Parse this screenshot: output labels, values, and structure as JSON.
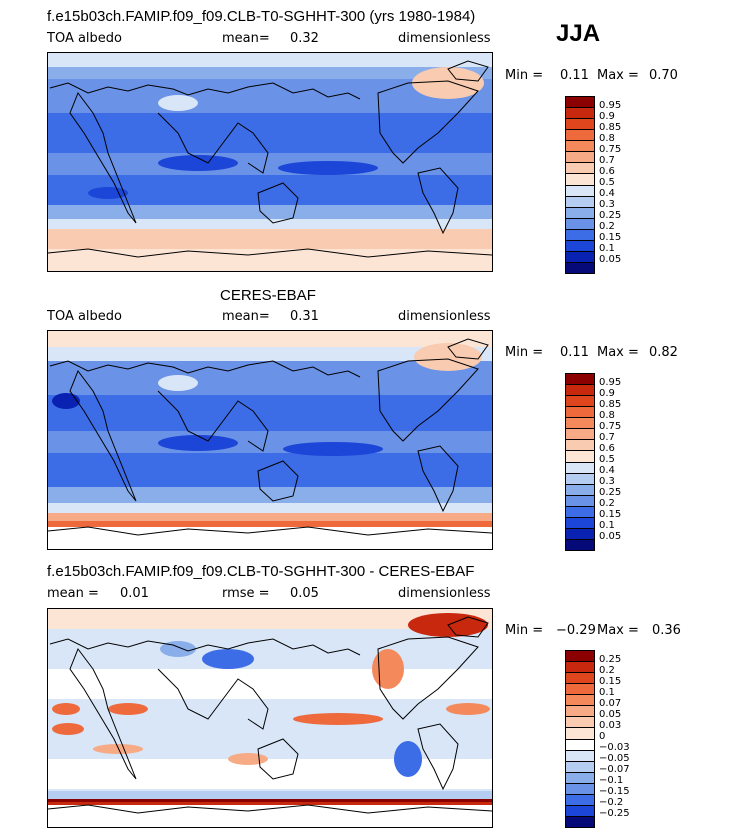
{
  "season": "JJA",
  "panels": [
    {
      "title": "f.e15b03ch.FAMIP.f09_f09.CLB-T0-SGHHT-300 (yrs 1980-1984)",
      "left": "TOA albedo",
      "mid_label": "mean=",
      "mid_value": "0.32",
      "right": "dimensionless",
      "min_label": "Min =",
      "min_value": "0.11",
      "max_label": "Max =",
      "max_value": "0.70"
    },
    {
      "title": "CERES-EBAF",
      "left": "TOA albedo",
      "mid_label": "mean=",
      "mid_value": "0.31",
      "right": "dimensionless",
      "min_label": "Min =",
      "min_value": "0.11",
      "max_label": "Max =",
      "max_value": "0.82"
    },
    {
      "title": "f.e15b03ch.FAMIP.f09_f09.CLB-T0-SGHHT-300 - CERES-EBAF",
      "left_label": "mean =",
      "left_value": "0.01",
      "mid_label": "rmse =",
      "mid_value": "0.05",
      "right": "dimensionless",
      "min_label": "Min =",
      "min_value": "−0.29",
      "max_label": "Max =",
      "max_value": "0.36"
    }
  ],
  "albedo_levels": [
    "0.95",
    "0.9",
    "0.85",
    "0.8",
    "0.75",
    "0.7",
    "0.6",
    "0.5",
    "0.4",
    "0.3",
    "0.25",
    "0.2",
    "0.15",
    "0.1",
    "0.05"
  ],
  "albedo_colors": [
    "#8b0000",
    "#c8280e",
    "#e0461e",
    "#ee6a3c",
    "#f48a5c",
    "#f6ab86",
    "#f9cbb0",
    "#fde5d6",
    "#d8e6f7",
    "#b4cdf0",
    "#8aaeea",
    "#6a92e6",
    "#3c6ce6",
    "#1b46d8",
    "#0a22b2",
    "#050a78"
  ],
  "diff_levels": [
    "0.25",
    "0.2",
    "0.15",
    "0.1",
    "0.07",
    "0.05",
    "0.03",
    "0",
    "−0.03",
    "−0.05",
    "−0.07",
    "−0.1",
    "−0.15",
    "−0.2",
    "−0.25"
  ],
  "diff_colors": [
    "#8b0000",
    "#c8280e",
    "#e0461e",
    "#ee6a3c",
    "#f48a5c",
    "#f6ab86",
    "#f9cbb0",
    "#fde5d6",
    "#ffffff",
    "#d8e6f7",
    "#b4cdf0",
    "#8aaeea",
    "#6a92e6",
    "#3c6ce6",
    "#1b46d8",
    "#050a78"
  ]
}
